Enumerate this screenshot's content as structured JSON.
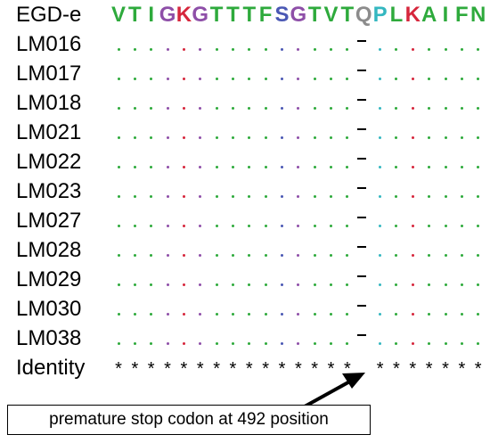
{
  "reference": {
    "label": "EGD-e",
    "residues": [
      "V",
      "T",
      "I",
      "G",
      "K",
      "G",
      "T",
      "T",
      "T",
      "F",
      "S",
      "G",
      "T",
      "V",
      "T",
      "Q",
      "P",
      "L",
      "K",
      "A",
      "I",
      "F",
      "N"
    ]
  },
  "residue_colors": {
    "V": "#2eaa3c",
    "T": "#2eaa3c",
    "F": "#2eaa3c",
    "L": "#2eaa3c",
    "A": "#2eaa3c",
    "I": "#2eaa3c",
    "N": "#2eaa3c",
    "G": "#8e4fa8",
    "K": "#d6263c",
    "S": "#4a58b4",
    "Q": "#8c8c8c",
    "P": "#34b7c0"
  },
  "rows": [
    {
      "label": "LM016"
    },
    {
      "label": "LM017"
    },
    {
      "label": "LM018"
    },
    {
      "label": "LM021"
    },
    {
      "label": "LM022"
    },
    {
      "label": "LM023"
    },
    {
      "label": "LM027"
    },
    {
      "label": "LM028"
    },
    {
      "label": "LM029"
    },
    {
      "label": "LM030"
    },
    {
      "label": "LM038"
    }
  ],
  "gap_position": 15,
  "identity": {
    "label": "Identity",
    "symbols": [
      "*",
      "*",
      "*",
      "*",
      "*",
      "*",
      "*",
      "*",
      "*",
      "*",
      "*",
      "*",
      "*",
      "*",
      "*",
      "",
      "*",
      "*",
      "*",
      "*",
      "*",
      "*",
      "*"
    ]
  },
  "callout": {
    "text": "premature stop codon at 492 position"
  }
}
